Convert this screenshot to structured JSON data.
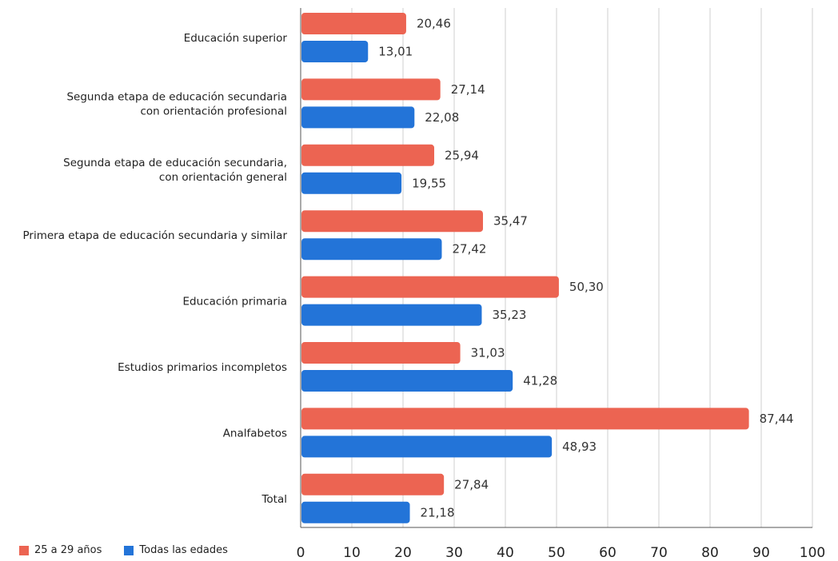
{
  "chart_data": {
    "type": "bar",
    "orientation": "horizontal",
    "categories": [
      [
        "Educación superior"
      ],
      [
        "Segunda etapa de educación secundaria",
        "con orientación profesional"
      ],
      [
        "Segunda etapa de educación secundaria,",
        "con orientación general"
      ],
      [
        "Primera etapa de educación secundaria y similar"
      ],
      [
        "Educación primaria"
      ],
      [
        "Estudios primarios incompletos"
      ],
      [
        "Analfabetos"
      ],
      [
        "Total"
      ]
    ],
    "series": [
      {
        "name": "25 a 29 años",
        "color": "#ec6452",
        "values": [
          20.46,
          27.14,
          25.94,
          35.47,
          50.3,
          31.03,
          87.44,
          27.84
        ],
        "labels": [
          "20,46",
          "27,14",
          "25,94",
          "35,47",
          "50,30",
          "31,03",
          "87,44",
          "27,84"
        ]
      },
      {
        "name": "Todas las edades",
        "color": "#2374d8",
        "values": [
          13.01,
          22.08,
          19.55,
          27.42,
          35.23,
          41.28,
          48.93,
          21.18
        ],
        "labels": [
          "13,01",
          "22,08",
          "19,55",
          "27,42",
          "35,23",
          "41,28",
          "48,93",
          "21,18"
        ]
      }
    ],
    "xlim": [
      0,
      100
    ],
    "xticks": [
      "0",
      "10",
      "20",
      "30",
      "40",
      "50",
      "60",
      "70",
      "80",
      "90",
      "100"
    ],
    "grid": true,
    "legend_position": "bottom-left"
  }
}
